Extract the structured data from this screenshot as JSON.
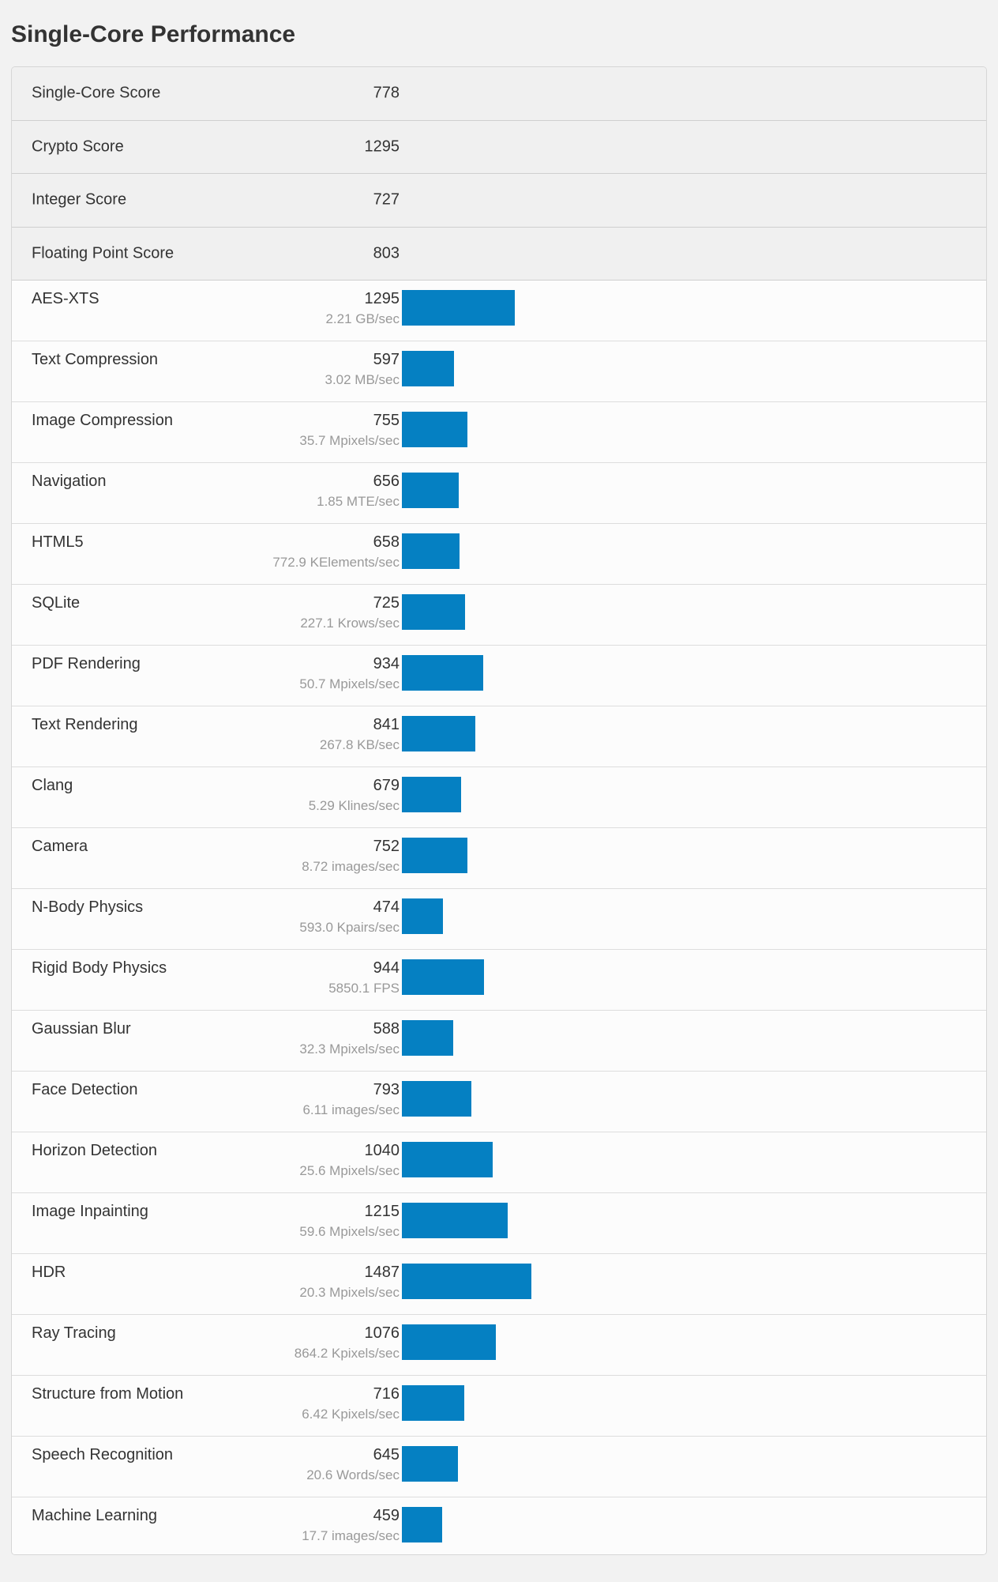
{
  "title": "Single-Core Performance",
  "colors": {
    "bar": "#0580c2"
  },
  "summary": [
    {
      "name": "Single-Core Score",
      "score": "778"
    },
    {
      "name": "Crypto Score",
      "score": "1295"
    },
    {
      "name": "Integer Score",
      "score": "727"
    },
    {
      "name": "Floating Point Score",
      "score": "803"
    }
  ],
  "benchmarks": [
    {
      "name": "AES-XTS",
      "score": "1295",
      "desc": "2.21 GB/sec"
    },
    {
      "name": "Text Compression",
      "score": "597",
      "desc": "3.02 MB/sec"
    },
    {
      "name": "Image Compression",
      "score": "755",
      "desc": "35.7 Mpixels/sec"
    },
    {
      "name": "Navigation",
      "score": "656",
      "desc": "1.85 MTE/sec"
    },
    {
      "name": "HTML5",
      "score": "658",
      "desc": "772.9 KElements/sec"
    },
    {
      "name": "SQLite",
      "score": "725",
      "desc": "227.1 Krows/sec"
    },
    {
      "name": "PDF Rendering",
      "score": "934",
      "desc": "50.7 Mpixels/sec"
    },
    {
      "name": "Text Rendering",
      "score": "841",
      "desc": "267.8 KB/sec"
    },
    {
      "name": "Clang",
      "score": "679",
      "desc": "5.29 Klines/sec"
    },
    {
      "name": "Camera",
      "score": "752",
      "desc": "8.72 images/sec"
    },
    {
      "name": "N-Body Physics",
      "score": "474",
      "desc": "593.0 Kpairs/sec"
    },
    {
      "name": "Rigid Body Physics",
      "score": "944",
      "desc": "5850.1 FPS"
    },
    {
      "name": "Gaussian Blur",
      "score": "588",
      "desc": "32.3 Mpixels/sec"
    },
    {
      "name": "Face Detection",
      "score": "793",
      "desc": "6.11 images/sec"
    },
    {
      "name": "Horizon Detection",
      "score": "1040",
      "desc": "25.6 Mpixels/sec"
    },
    {
      "name": "Image Inpainting",
      "score": "1215",
      "desc": "59.6 Mpixels/sec"
    },
    {
      "name": "HDR",
      "score": "1487",
      "desc": "20.3 Mpixels/sec"
    },
    {
      "name": "Ray Tracing",
      "score": "1076",
      "desc": "864.2 Kpixels/sec"
    },
    {
      "name": "Structure from Motion",
      "score": "716",
      "desc": "6.42 Kpixels/sec"
    },
    {
      "name": "Speech Recognition",
      "score": "645",
      "desc": "20.6 Words/sec"
    },
    {
      "name": "Machine Learning",
      "score": "459",
      "desc": "17.7 images/sec"
    }
  ]
}
